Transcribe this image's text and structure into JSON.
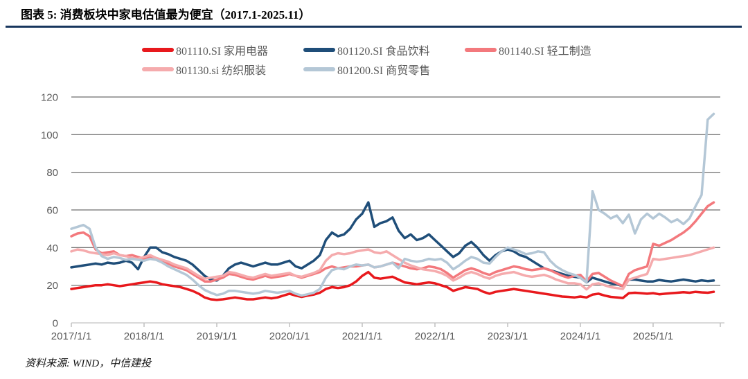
{
  "header": {
    "title": "图表 5: 消费板块中家电估值最为便宜（2017.1-2025.11）"
  },
  "footer": {
    "source": "资料来源: WIND，中信建投"
  },
  "chart_data": {
    "type": "line",
    "title": "",
    "xlabel": "",
    "ylabel": "",
    "x_start": "2017-01",
    "x_end": "2025-11",
    "x_frequency": "monthly",
    "x_tick_labels": [
      "2017/1/1",
      "2018/1/1",
      "2019/1/1",
      "2020/1/1",
      "2021/1/1",
      "2022/1/1",
      "2023/1/1",
      "2024/1/1",
      "2025/1/1"
    ],
    "y_ticks": [
      0,
      20,
      40,
      60,
      80,
      100,
      120
    ],
    "ylim": [
      0,
      120
    ],
    "grid": "horizontal",
    "legend_position": "top",
    "colors": {
      "grid": "#4a4a4a",
      "axis_line": "#d9d9d9",
      "tick": "#c0c0c0",
      "axis_text": "#595959",
      "title_rule": "#17365d"
    },
    "series": [
      {
        "code": "801110.SI",
        "name": "家用电器",
        "color": "#e8191d",
        "values": [
          18,
          18.5,
          19,
          19.5,
          20,
          20,
          20.5,
          20,
          19.5,
          20,
          20.5,
          21,
          21.5,
          22,
          21.5,
          20.5,
          20,
          19.5,
          19,
          18,
          17,
          15.5,
          13.5,
          12.5,
          12.2,
          12.5,
          13,
          13.5,
          13,
          12.5,
          12.5,
          13,
          13.5,
          13,
          13.5,
          14.5,
          15.5,
          14.5,
          13.8,
          14.5,
          15,
          16,
          18,
          19,
          18.5,
          19,
          20,
          22,
          25,
          27,
          24,
          23.5,
          24,
          24.5,
          23,
          21.5,
          21,
          20.5,
          21,
          21.5,
          21,
          20,
          19,
          17,
          18,
          19,
          18.5,
          18,
          16.5,
          15.5,
          16.5,
          17,
          17.5,
          18,
          17.5,
          17,
          16.5,
          16,
          15.5,
          15,
          14.5,
          14,
          13.8,
          13.5,
          14,
          13.5,
          15,
          15.5,
          14.5,
          13.8,
          13.5,
          13.2,
          15.8,
          16,
          15.8,
          15.5,
          15.8,
          15.2,
          15.5,
          15.8,
          16,
          16.3,
          16,
          16.5,
          16.2,
          16,
          16.5
        ]
      },
      {
        "code": "801120.SI",
        "name": "食品饮料",
        "color": "#1f4e79",
        "values": [
          29.5,
          30,
          30.5,
          31,
          31.5,
          31,
          32,
          31.5,
          32,
          33,
          32,
          28.5,
          35,
          40,
          40,
          37.5,
          36.5,
          35,
          34,
          33,
          31,
          28,
          25,
          23,
          22.5,
          25,
          29,
          31,
          32,
          31,
          30,
          31,
          32,
          31,
          31,
          32,
          33,
          30,
          29,
          31,
          33,
          36,
          44,
          48,
          46,
          47,
          50,
          55,
          58,
          64,
          51,
          53,
          54,
          56,
          49,
          45,
          47,
          44,
          45,
          47,
          44,
          41,
          38,
          35,
          37,
          41,
          43,
          40,
          36,
          33,
          36,
          38,
          39,
          38,
          36,
          35,
          33,
          31,
          29,
          28,
          27,
          26,
          25,
          24.5,
          24,
          21.5,
          24,
          23,
          22,
          21,
          20.5,
          19.5,
          23,
          23,
          22.5,
          22,
          22,
          22.8,
          22.3,
          22,
          22.5,
          23,
          22.5,
          22,
          22.6,
          22.2,
          22.5
        ]
      },
      {
        "code": "801140.SI",
        "name": "轻工制造",
        "color": "#f3797d",
        "values": [
          46,
          47.5,
          48,
          46,
          39,
          37,
          37.5,
          38,
          36,
          35.5,
          36,
          35,
          34,
          35,
          33.5,
          32.5,
          31.5,
          30,
          29,
          28,
          26,
          24,
          22,
          22,
          23,
          24,
          26,
          25.5,
          24.5,
          23.5,
          23,
          24,
          25,
          24,
          24.5,
          25,
          26,
          25,
          24,
          25,
          26,
          27,
          29,
          30,
          29,
          29.5,
          30,
          30,
          30.5,
          31,
          29.5,
          30,
          31,
          32,
          31,
          30,
          29,
          28.5,
          29,
          30,
          29.5,
          28.5,
          26.5,
          24,
          26,
          28,
          29,
          28,
          26.5,
          25.5,
          27,
          28,
          29,
          30,
          29.5,
          28.5,
          28,
          28.5,
          29,
          28,
          26.5,
          25,
          24,
          25,
          25.5,
          22,
          26,
          26.5,
          24.5,
          22.5,
          21,
          19.5,
          26,
          28,
          29,
          30,
          42,
          41,
          42.5,
          44,
          46,
          48,
          50.5,
          54,
          58,
          62,
          64
        ]
      },
      {
        "code": "801130.si",
        "name": "纺织服装",
        "color": "#f5abad",
        "values": [
          38,
          39,
          38.5,
          37.5,
          37,
          36.5,
          36,
          37,
          36,
          35.5,
          34.5,
          34,
          35,
          36,
          34.5,
          33.5,
          32.5,
          31,
          30,
          29,
          27,
          25,
          23.5,
          24,
          24.5,
          25,
          27,
          26.5,
          25.5,
          24.5,
          24,
          25,
          26,
          25,
          25.5,
          26,
          26.5,
          25,
          24.5,
          25.5,
          26.5,
          28,
          33,
          36,
          37,
          36.5,
          37,
          38,
          38.5,
          39,
          37.5,
          37,
          38,
          36,
          34,
          32,
          30.5,
          29.5,
          28.5,
          28,
          27.5,
          26.5,
          25,
          22.5,
          24,
          26,
          27,
          26,
          24.5,
          23.5,
          25,
          26,
          26.5,
          27,
          26,
          25,
          24.5,
          25,
          25.5,
          24.5,
          23,
          22,
          21,
          21,
          20.5,
          17.8,
          20.5,
          21,
          20,
          19,
          18.5,
          18,
          23,
          24,
          25,
          26,
          34,
          33.5,
          34,
          34.5,
          35,
          35.5,
          36,
          37,
          38,
          39,
          40
        ]
      },
      {
        "code": "801200.SI",
        "name": "商贸零售",
        "color": "#b4c7d6",
        "values": [
          50,
          51,
          52,
          50,
          40,
          35.5,
          34,
          35,
          34.5,
          33.5,
          34,
          33.5,
          33,
          34,
          33.5,
          32,
          30,
          28.5,
          27,
          25.5,
          23,
          20,
          17.5,
          16,
          14.8,
          15.5,
          17,
          17,
          16.5,
          16,
          15.5,
          16,
          17,
          16.5,
          16,
          16.5,
          17,
          15.5,
          14.5,
          15.2,
          16,
          18,
          24,
          28,
          29,
          28.5,
          30,
          31,
          30.5,
          31,
          29.5,
          30,
          31,
          32,
          29,
          34,
          33,
          32.5,
          33,
          34,
          33.5,
          34,
          32,
          28.5,
          30.5,
          33,
          35,
          34,
          32,
          31.5,
          35,
          38,
          40,
          39,
          38,
          36.5,
          37,
          38,
          37.5,
          33,
          30,
          28,
          26.5,
          25.5,
          24,
          21.5,
          70,
          60,
          58,
          55.5,
          57,
          53,
          57.5,
          47.5,
          55,
          58,
          55.5,
          58,
          56,
          53.5,
          55,
          52.5,
          55.5,
          62,
          68,
          108,
          111
        ]
      }
    ]
  }
}
